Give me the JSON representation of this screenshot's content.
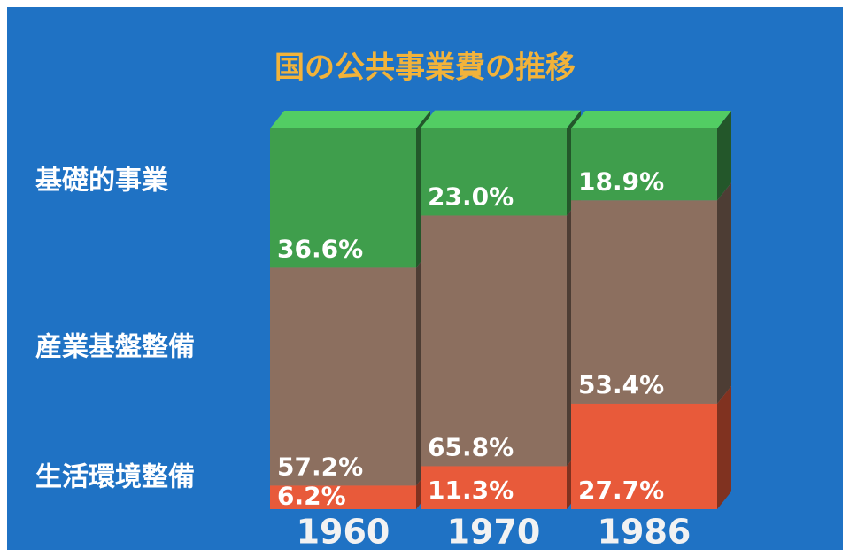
{
  "chart_data": {
    "type": "stacked-bar-3d",
    "title": "国の公共事業費の推移",
    "categories": [
      "1960",
      "1970",
      "1986"
    ],
    "series": [
      {
        "name": "基礎的事業",
        "color": "#3f9e4c",
        "values": [
          36.6,
          23.0,
          18.9
        ],
        "value_labels": [
          "36.6%",
          "23.0%",
          "18.9%"
        ]
      },
      {
        "name": "産業基盤整備",
        "color": "#8c6f5f",
        "values": [
          57.2,
          65.8,
          53.4
        ],
        "value_labels": [
          "57.2%",
          "65.8%",
          "53.4%"
        ]
      },
      {
        "name": "生活環境整備",
        "color": "#e85a3a",
        "values": [
          6.2,
          11.3,
          27.7
        ],
        "value_labels": [
          "6.2%",
          "11.3%",
          "27.7%"
        ]
      }
    ]
  }
}
